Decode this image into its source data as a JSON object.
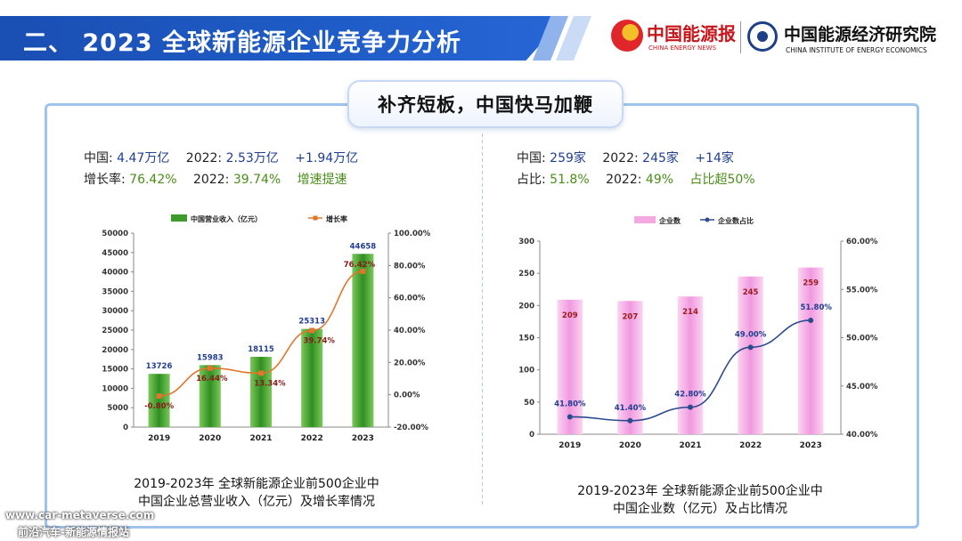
{
  "header": {
    "title": "二、 2023 全球新能源企业竞争力分析",
    "logo1": {
      "name": "中国能源报",
      "sub": "CHINA ENERGY NEWS"
    },
    "logo2": {
      "name": "中国能源经济研究院",
      "sub": "CHINA INSTITUTE OF ENERGY ECONOMICS"
    }
  },
  "subtitle": "补齐短板，中国快马加鞭",
  "left": {
    "stats": {
      "row1": {
        "label1": "中国:",
        "value1": "4.47万亿",
        "label2": "2022:",
        "value2": "2.53万亿",
        "value3": "+1.94万亿"
      },
      "row2": {
        "label1": "增长率:",
        "value1": "76.42%",
        "label2": "2022:",
        "value2": "39.74%",
        "value3": "增速提速"
      }
    },
    "caption_line1": "2019-2023年 全球新能源企业前500企业中",
    "caption_line2": "中国企业总营业收入（亿元）及增长率情况"
  },
  "right": {
    "stats": {
      "row1": {
        "label1": "中国:",
        "value1": "259家",
        "label2": "2022:",
        "value2": "245家",
        "value3": "+14家"
      },
      "row2": {
        "label1": "占比:",
        "value1": "51.8%",
        "label2": "2022:",
        "value2": "49%",
        "value3": "占比超50%"
      }
    },
    "caption_line1": "2019-2023年 全球新能源企业前500企业中",
    "caption_line2": "中国企业数（亿元）及占比情况"
  },
  "watermark": {
    "line1": "www.car-metaverse.com",
    "line2": "前沿汽车-新能源情报站"
  },
  "colors": {
    "bar_green": "#3f9a2e",
    "line_orange": "#e2752c",
    "bar_pink": "#f4a9e3",
    "line_navy": "#2b4b8f",
    "accent_blue": "#1f5cc7"
  },
  "chart_data": [
    {
      "type": "bar",
      "legend": [
        "中国营业收入（亿元）",
        "增长率"
      ],
      "categories": [
        "2019",
        "2020",
        "2021",
        "2022",
        "2023"
      ],
      "series": [
        {
          "name": "中国营业收入（亿元）",
          "type": "bar",
          "axis": "left",
          "values": [
            13726,
            15983,
            18115,
            25313,
            44658
          ],
          "labels": [
            "13726",
            "15983",
            "18115",
            "25313",
            "44658"
          ]
        },
        {
          "name": "增长率",
          "type": "line",
          "axis": "right",
          "values": [
            -0.8,
            16.44,
            13.34,
            39.74,
            76.42
          ],
          "labels": [
            "-0.80%",
            "16.44%",
            "13.34%",
            "39.74%",
            "76.42%"
          ]
        }
      ],
      "y_left": {
        "min": 0,
        "max": 50000,
        "step": 5000,
        "ticks": [
          "0",
          "5000",
          "10000",
          "15000",
          "20000",
          "25000",
          "30000",
          "35000",
          "40000",
          "45000",
          "50000"
        ]
      },
      "y_right": {
        "min": -20,
        "max": 100,
        "step": 20,
        "ticks": [
          "-20.00%",
          "0.00%",
          "20.00%",
          "40.00%",
          "60.00%",
          "80.00%",
          "100.00%"
        ]
      },
      "legend_position": "top",
      "grid": false
    },
    {
      "type": "bar",
      "legend": [
        "企业数",
        "企业数占比"
      ],
      "categories": [
        "2019",
        "2020",
        "2021",
        "2022",
        "2023"
      ],
      "series": [
        {
          "name": "企业数",
          "type": "bar",
          "axis": "left",
          "values": [
            209,
            207,
            214,
            245,
            259
          ],
          "labels": [
            "209",
            "207",
            "214",
            "245",
            "259"
          ]
        },
        {
          "name": "企业数占比",
          "type": "line",
          "axis": "right",
          "values": [
            41.8,
            41.4,
            42.8,
            49.0,
            51.8
          ],
          "labels": [
            "41.80%",
            "41.40%",
            "42.80%",
            "49.00%",
            "51.80%"
          ]
        }
      ],
      "y_left": {
        "min": 0,
        "max": 300,
        "step": 50,
        "ticks": [
          "0",
          "50",
          "100",
          "150",
          "200",
          "250",
          "300"
        ]
      },
      "y_right": {
        "min": 40,
        "max": 60,
        "step": 5,
        "ticks": [
          "40.00%",
          "45.00%",
          "50.00%",
          "55.00%",
          "60.00%"
        ]
      },
      "legend_position": "top",
      "grid": false
    }
  ]
}
